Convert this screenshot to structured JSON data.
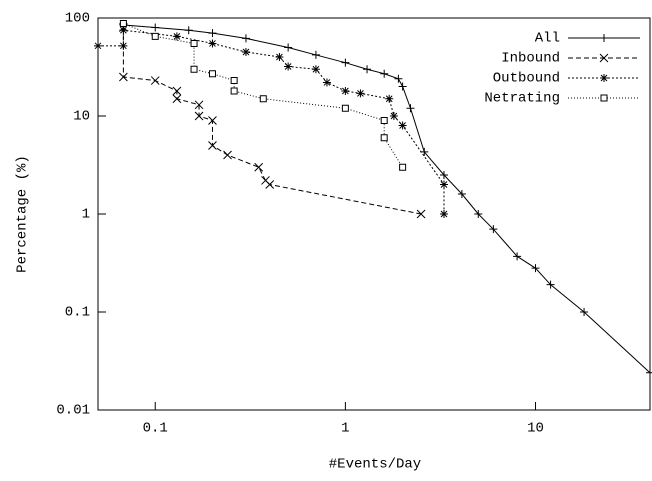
{
  "chart_data": {
    "type": "line",
    "x_label": "#Events/Day",
    "y_label": "Percentage (%)",
    "xlog": true,
    "ylog": true,
    "xlim": [
      0.05,
      40
    ],
    "ylim": [
      0.01,
      100
    ],
    "xticks": [
      0.1,
      1,
      10
    ],
    "yticks": [
      0.01,
      0.1,
      1,
      10,
      100
    ],
    "legend": "top-right",
    "series": [
      {
        "name": "All",
        "color": "#000000",
        "marker": "plus",
        "dash": "none",
        "x": [
          0.068,
          0.1,
          0.15,
          0.2,
          0.3,
          0.5,
          0.7,
          1,
          1.3,
          1.6,
          1.9,
          2.0,
          2.2,
          2.6,
          3.3,
          4.1,
          5,
          6,
          8,
          10,
          12,
          18,
          40
        ],
        "values": [
          85,
          80,
          75,
          70,
          62,
          50,
          42,
          35,
          30,
          27,
          24,
          20,
          12,
          4.3,
          2.5,
          1.6,
          1,
          0.7,
          0.37,
          0.28,
          0.19,
          0.1,
          0.024
        ]
      },
      {
        "name": "Inbound",
        "color": "#000000",
        "marker": "cross",
        "dash": "5,3",
        "x": [
          0.068,
          0.068,
          0.1,
          0.13,
          0.13,
          0.17,
          0.17,
          0.2,
          0.2,
          0.24,
          0.35,
          0.38,
          0.4,
          2.5
        ],
        "values": [
          80,
          25,
          23,
          18,
          15,
          13,
          10,
          9,
          5,
          4,
          3,
          2.2,
          2,
          1
        ]
      },
      {
        "name": "Outbound",
        "color": "#000000",
        "marker": "star",
        "dash": "2,2",
        "x": [
          0.05,
          0.068,
          0.068,
          0.13,
          0.2,
          0.3,
          0.45,
          0.5,
          0.7,
          0.8,
          1.0,
          1.2,
          1.7,
          1.8,
          2.0,
          3.3,
          3.3
        ],
        "values": [
          52,
          52,
          75,
          65,
          55,
          45,
          40,
          32,
          30,
          22,
          18,
          17,
          15,
          10,
          8,
          2,
          1
        ]
      },
      {
        "name": "Netrating",
        "color": "#000000",
        "marker": "square",
        "dash": "1,2",
        "x": [
          0.068,
          0.1,
          0.16,
          0.16,
          0.2,
          0.26,
          0.26,
          0.37,
          1,
          1.6,
          1.6,
          2
        ],
        "values": [
          88,
          65,
          55,
          30,
          27,
          23,
          18,
          15,
          12,
          9,
          6,
          3
        ]
      }
    ]
  }
}
